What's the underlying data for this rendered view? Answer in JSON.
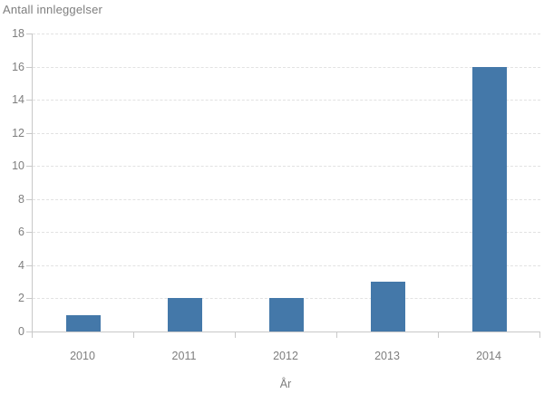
{
  "chart": {
    "title": "Antall innleggelser",
    "xlabel": "År"
  },
  "chart_data": {
    "type": "bar",
    "title": "Antall innleggelser",
    "xlabel": "År",
    "ylabel": "Antall innleggelser",
    "categories": [
      "2010",
      "2011",
      "2012",
      "2013",
      "2014"
    ],
    "values": [
      1,
      2,
      2,
      3,
      16
    ],
    "ylim": [
      0,
      18
    ],
    "ytick_step": 2,
    "yticks": [
      0,
      2,
      4,
      6,
      8,
      10,
      12,
      14,
      16,
      18
    ],
    "grid": "horizontal-dashed",
    "legend": "none",
    "colors": {
      "bar": "#4478a9",
      "axis": "#c8c8c8",
      "grid": "#e2e2e2",
      "text": "#7e7e7e"
    }
  }
}
